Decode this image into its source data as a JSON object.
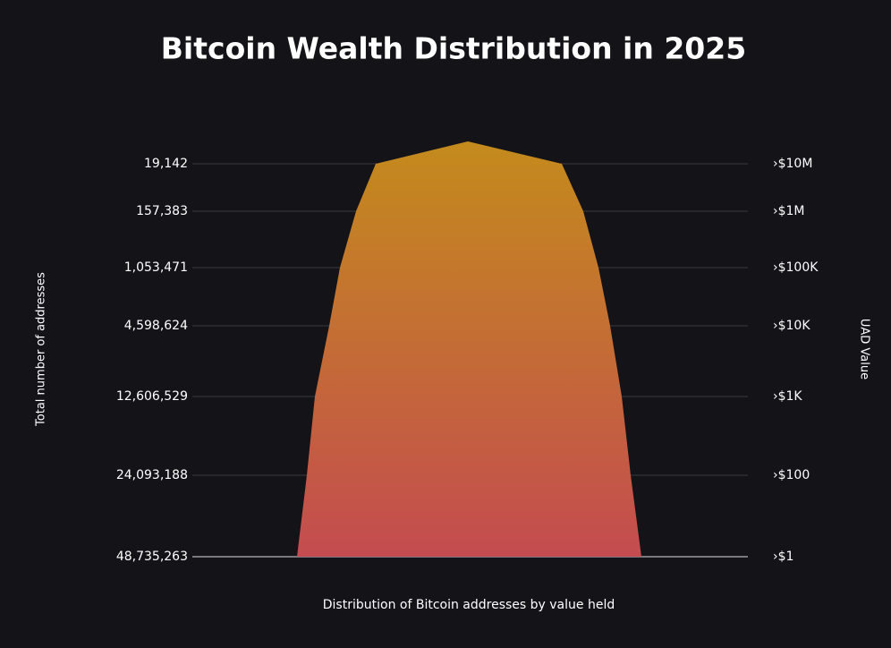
{
  "title": "Bitcoin Wealth Distribution in 2025",
  "left_axis_label": "Total number of addresses",
  "right_axis_label": "UAD Value",
  "bottom_label": "Distribution of Bitcoin addresses by value held",
  "levels": [
    {
      "count": "19,142",
      "value": "›$10M"
    },
    {
      "count": "157,383",
      "value": "›$1M"
    },
    {
      "count": "1,053,471",
      "value": "›$100K"
    },
    {
      "count": "4,598,624",
      "value": "›$10K"
    },
    {
      "count": "12,606,529",
      "value": "›$1K"
    },
    {
      "count": "24,093,188",
      "value": "›$100"
    },
    {
      "count": "48,735,263",
      "value": "›$1"
    }
  ]
}
